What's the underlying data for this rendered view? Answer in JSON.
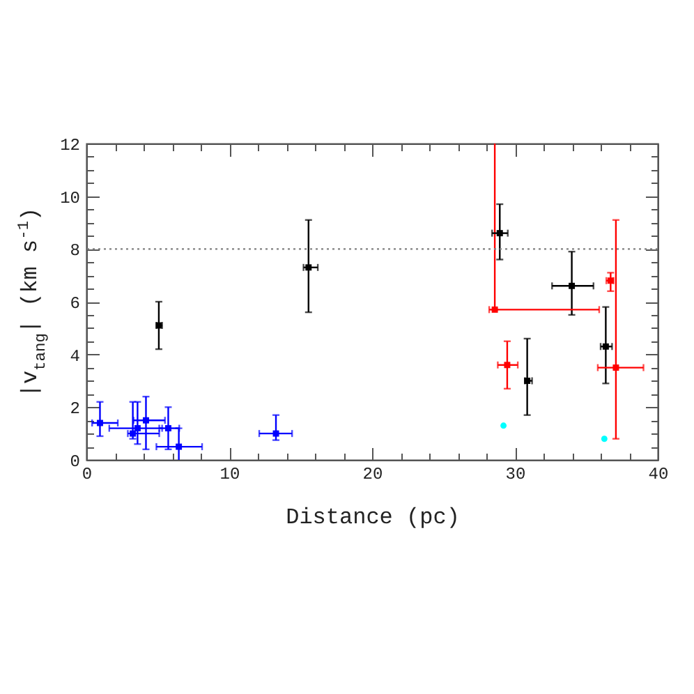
{
  "chart_data": {
    "type": "scatter",
    "xlabel": "Distance (pc)",
    "ylabel": "|v$_{tang}$| (km s$^{-1}$)",
    "xlim": [
      0,
      40
    ],
    "ylim": [
      0,
      12
    ],
    "xticks": [
      0,
      {
        "value": 2,
        "label": null
      },
      {
        "value": 4,
        "label": null
      },
      {
        "value": 6,
        "label": null
      },
      {
        "value": 8,
        "label": null
      },
      10,
      {
        "value": 12,
        "label": null
      },
      {
        "value": 14,
        "label": null
      },
      {
        "value": 16,
        "label": null
      },
      {
        "value": 18,
        "label": null
      },
      20,
      {
        "value": 22,
        "label": null
      },
      {
        "value": 24,
        "label": null
      },
      {
        "value": 26,
        "label": null
      },
      {
        "value": 28,
        "label": null
      },
      30,
      {
        "value": 32,
        "label": null
      },
      {
        "value": 34,
        "label": null
      },
      {
        "value": 36,
        "label": null
      },
      {
        "value": 38,
        "label": null
      },
      40
    ],
    "yticks": [
      0,
      {
        "value": 0.5,
        "label": null
      },
      {
        "value": 1,
        "label": null
      },
      {
        "value": 1.5,
        "label": null
      },
      2,
      {
        "value": 2.5,
        "label": null
      },
      {
        "value": 3,
        "label": null
      },
      {
        "value": 3.5,
        "label": null
      },
      4,
      {
        "value": 4.5,
        "label": null
      },
      {
        "value": 5,
        "label": null
      },
      {
        "value": 5.5,
        "label": null
      },
      6,
      {
        "value": 6.5,
        "label": null
      },
      {
        "value": 7,
        "label": null
      },
      {
        "value": 7.5,
        "label": null
      },
      8,
      {
        "value": 8.5,
        "label": null
      },
      {
        "value": 9,
        "label": null
      },
      {
        "value": 9.5,
        "label": null
      },
      10,
      {
        "value": 10.5,
        "label": null
      },
      {
        "value": 11,
        "label": null
      },
      {
        "value": 11.5,
        "label": null
      },
      12
    ],
    "marker": "square",
    "ref_lines": [
      {
        "axis": "y",
        "value": 8,
        "color": "#808080",
        "line_style": "dotted"
      }
    ],
    "series": [
      {
        "color": "#0000ff",
        "x": [
          0.95,
          3.25,
          3.58,
          4.17,
          5.73,
          6.47,
          13.27
        ],
        "values": [
          1.4,
          1.0,
          1.2,
          1.5,
          1.2,
          0.5,
          1.0
        ],
        "errors": [
          [
            0.9,
            2.2
          ],
          [
            0.8,
            2.2
          ],
          [
            0.6,
            2.2
          ],
          [
            0.4,
            2.4
          ],
          [
            0.4,
            2.0
          ],
          [
            0,
            1.2
          ],
          [
            0.75,
            1.7
          ]
        ],
        "xerrors": [
          [
            0.4,
            2.2
          ],
          [
            2.9,
            5.1
          ],
          [
            1.6,
            5.3
          ],
          [
            3.3,
            5.5
          ],
          [
            5.1,
            6.5
          ],
          [
            4.9,
            8.1
          ],
          [
            12.1,
            14.4
          ]
        ]
      },
      {
        "color": "#000000",
        "x": [
          5.07,
          15.55,
          28.94,
          33.98,
          36.36,
          30.86
        ],
        "values": [
          5.1,
          7.3,
          8.6,
          6.6,
          4.3,
          3.0
        ],
        "errors": [
          [
            4.2,
            6.0
          ],
          [
            5.6,
            9.1
          ],
          [
            7.6,
            9.7
          ],
          [
            5.5,
            7.9
          ],
          [
            2.9,
            5.8
          ],
          [
            1.7,
            4.6
          ]
        ],
        "xerrors": [
          [
            4.9,
            5.3
          ],
          [
            15.2,
            16.2
          ],
          [
            28.4,
            29.5
          ],
          [
            32.6,
            35.5
          ],
          [
            36.0,
            36.8
          ],
          [
            30.7,
            31.2
          ]
        ]
      },
      {
        "color": "#ff0000",
        "x": [
          28.59,
          29.46,
          36.7,
          37.07
        ],
        "values": [
          5.7,
          3.6,
          6.8,
          3.5
        ],
        "errors": [
          [
            5.7,
            12
          ],
          [
            2.7,
            4.5
          ],
          [
            6.4,
            7.1
          ],
          [
            0.8,
            9.1
          ]
        ],
        "xerrors": [
          [
            28.2,
            35.9
          ],
          [
            28.8,
            30.2
          ],
          [
            36.4,
            36.9
          ],
          [
            35.8,
            39.0
          ]
        ]
      },
      {
        "color": "#00ffff",
        "marker": "circle",
        "x": [
          29.2,
          36.26
        ],
        "values": [
          1.3,
          0.8
        ]
      }
    ]
  }
}
